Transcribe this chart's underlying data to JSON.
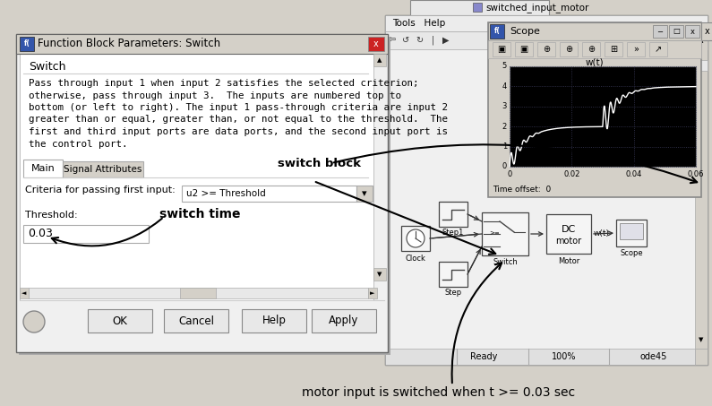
{
  "bg_color": "#d4d0c8",
  "fbp_title": "Function Block Parameters: Switch",
  "switch_heading": "Switch",
  "description_lines": [
    "Pass through input 1 when input 2 satisfies the selected criterion;",
    "otherwise, pass through input 3.  The inputs are numbered top to",
    "bottom (or left to right). The input 1 pass-through criteria are input 2",
    "greater than or equal, greater than, or not equal to the threshold.  The",
    "first and third input ports are data ports, and the second input port is",
    "the control port."
  ],
  "criteria_label": "Criteria for passing first input:",
  "criteria_value": "u2 >= Threshold",
  "threshold_label": "Threshold:",
  "threshold_value": "0.03",
  "switch_time_label": "switch time",
  "switch_block_label": "switch block",
  "simulink_title": "switched_input_motor",
  "scope_title": "w(t)",
  "scope_xlabel_vals": [
    "0",
    "0.02",
    "0.04",
    "0.06"
  ],
  "time_offset_text": "Time offset:  0",
  "status_ready": "Ready",
  "status_100": "100%",
  "status_ode": "ode45",
  "caption": "motor input is switched when t >= 0.03 sec",
  "caption_fontsize": 10,
  "dialog_fc": "#f0f0f0",
  "dialog_titlebar_fc": "#e0e0e0",
  "dialog_border": "#999999",
  "scope_bg": "#000000",
  "scope_line_color": "#ffffff",
  "scope_grid_color": "#404040",
  "sim_bg": "#e8e8e8",
  "sim_title_fc": "#d8d8d8",
  "block_fc": "#f5f5f5",
  "block_ec": "#444444"
}
